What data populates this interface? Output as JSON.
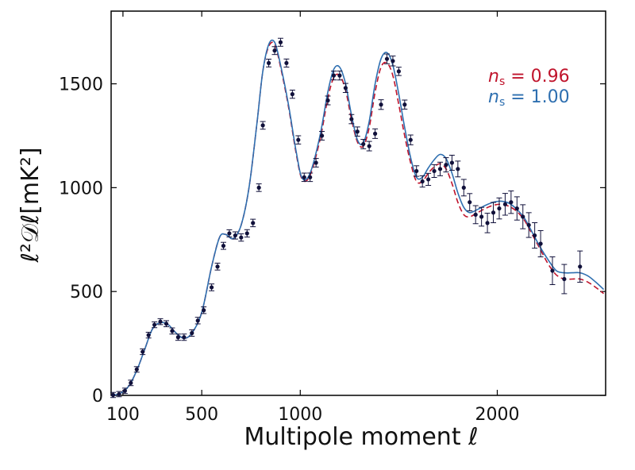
{
  "chart_data": {
    "type": "scatter",
    "title": "",
    "xlabel": "Multipole moment ℓ",
    "ylabel": "ℓ²𝒟ℓ[mK²]",
    "xlim": [
      40,
      2550
    ],
    "ylim": [
      0,
      1850
    ],
    "xticks": [
      {
        "value": 100,
        "label": "100"
      },
      {
        "value": 500,
        "label": "500"
      },
      {
        "value": 1000,
        "label": "1000"
      },
      {
        "value": 2000,
        "label": "2000"
      }
    ],
    "yticks": [
      {
        "value": 0,
        "label": "0"
      },
      {
        "value": 500,
        "label": "500"
      },
      {
        "value": 1000,
        "label": "1000"
      },
      {
        "value": 1500,
        "label": "1500"
      }
    ],
    "grid": false,
    "legend_position": "top-right",
    "series": [
      {
        "name": "n_s = 0.96",
        "label_symbol": "n",
        "label_sub": "s",
        "label_rest": " = 0.96",
        "color": "#c0142c",
        "style": "dashed",
        "x": [
          50,
          90,
          130,
          170,
          210,
          250,
          290,
          330,
          370,
          410,
          450,
          500,
          550,
          590,
          620,
          660,
          700,
          740,
          780,
          810,
          840,
          870,
          900,
          940,
          980,
          1010,
          1050,
          1100,
          1140,
          1170,
          1200,
          1230,
          1260,
          1290,
          1320,
          1350,
          1380,
          1410,
          1440,
          1470,
          1500,
          1530,
          1560,
          1590,
          1620,
          1650,
          1680,
          1710,
          1740,
          1770,
          1800,
          1830,
          1860,
          1900,
          1940,
          1980,
          2020,
          2060,
          2100,
          2140,
          2180,
          2220,
          2260,
          2300,
          2340,
          2380,
          2420,
          2460,
          2500,
          2540
        ],
        "y": [
          0,
          12,
          45,
          120,
          220,
          320,
          350,
          340,
          300,
          275,
          300,
          400,
          620,
          760,
          775,
          755,
          820,
          1000,
          1310,
          1560,
          1680,
          1690,
          1580,
          1390,
          1160,
          1040,
          1060,
          1230,
          1430,
          1530,
          1540,
          1470,
          1330,
          1220,
          1200,
          1290,
          1460,
          1580,
          1600,
          1540,
          1400,
          1250,
          1120,
          1030,
          1030,
          1070,
          1100,
          1115,
          1090,
          1020,
          930,
          870,
          860,
          880,
          900,
          915,
          920,
          910,
          885,
          840,
          770,
          700,
          630,
          580,
          560,
          560,
          560,
          545,
          520,
          490
        ]
      },
      {
        "name": "n_s = 1.00",
        "label_symbol": "n",
        "label_sub": "s",
        "label_rest": " = 1.00",
        "color": "#2e6fb0",
        "style": "solid",
        "x": [
          50,
          90,
          130,
          170,
          210,
          250,
          290,
          330,
          370,
          410,
          450,
          500,
          550,
          590,
          620,
          660,
          700,
          740,
          780,
          810,
          840,
          870,
          900,
          940,
          980,
          1010,
          1050,
          1100,
          1140,
          1170,
          1200,
          1230,
          1260,
          1290,
          1320,
          1350,
          1380,
          1410,
          1440,
          1470,
          1500,
          1530,
          1560,
          1590,
          1620,
          1650,
          1680,
          1710,
          1740,
          1770,
          1800,
          1830,
          1860,
          1900,
          1940,
          1980,
          2020,
          2060,
          2100,
          2140,
          2180,
          2220,
          2260,
          2300,
          2340,
          2380,
          2420,
          2460,
          2500,
          2540
        ],
        "y": [
          0,
          12,
          45,
          120,
          220,
          320,
          350,
          340,
          300,
          275,
          300,
          400,
          620,
          760,
          775,
          755,
          820,
          1000,
          1310,
          1560,
          1690,
          1700,
          1590,
          1400,
          1170,
          1045,
          1070,
          1250,
          1460,
          1570,
          1580,
          1500,
          1350,
          1230,
          1215,
          1320,
          1500,
          1620,
          1650,
          1590,
          1450,
          1290,
          1145,
          1050,
          1050,
          1095,
          1135,
          1160,
          1140,
          1070,
          975,
          905,
          880,
          895,
          915,
          930,
          935,
          925,
          895,
          850,
          780,
          710,
          650,
          600,
          590,
          590,
          590,
          575,
          545,
          510
        ]
      },
      {
        "name": "",
        "color": "#10103a",
        "style": "points",
        "x": [
          50,
          80,
          110,
          140,
          170,
          200,
          230,
          260,
          290,
          320,
          350,
          380,
          410,
          450,
          480,
          510,
          550,
          580,
          610,
          640,
          670,
          700,
          730,
          760,
          790,
          810,
          840,
          870,
          900,
          930,
          960,
          990,
          1020,
          1050,
          1080,
          1110,
          1140,
          1170,
          1200,
          1230,
          1260,
          1290,
          1320,
          1350,
          1380,
          1410,
          1440,
          1470,
          1500,
          1530,
          1560,
          1590,
          1620,
          1650,
          1680,
          1710,
          1740,
          1770,
          1800,
          1830,
          1860,
          1890,
          1920,
          1950,
          1980,
          2010,
          2040,
          2070,
          2100,
          2130,
          2160,
          2190,
          2220,
          2280,
          2340,
          2420
        ],
        "y": [
          2,
          6,
          22,
          60,
          125,
          210,
          290,
          340,
          355,
          345,
          310,
          280,
          280,
          300,
          360,
          410,
          520,
          620,
          720,
          780,
          770,
          760,
          780,
          830,
          1000,
          1300,
          1600,
          1660,
          1700,
          1600,
          1450,
          1230,
          1050,
          1050,
          1120,
          1250,
          1420,
          1540,
          1540,
          1480,
          1330,
          1270,
          1210,
          1200,
          1260,
          1400,
          1620,
          1610,
          1560,
          1400,
          1230,
          1080,
          1030,
          1040,
          1080,
          1090,
          1110,
          1120,
          1090,
          1000,
          930,
          870,
          860,
          830,
          880,
          900,
          920,
          930,
          900,
          860,
          820,
          770,
          730,
          600,
          560,
          620
        ]
      }
    ]
  }
}
